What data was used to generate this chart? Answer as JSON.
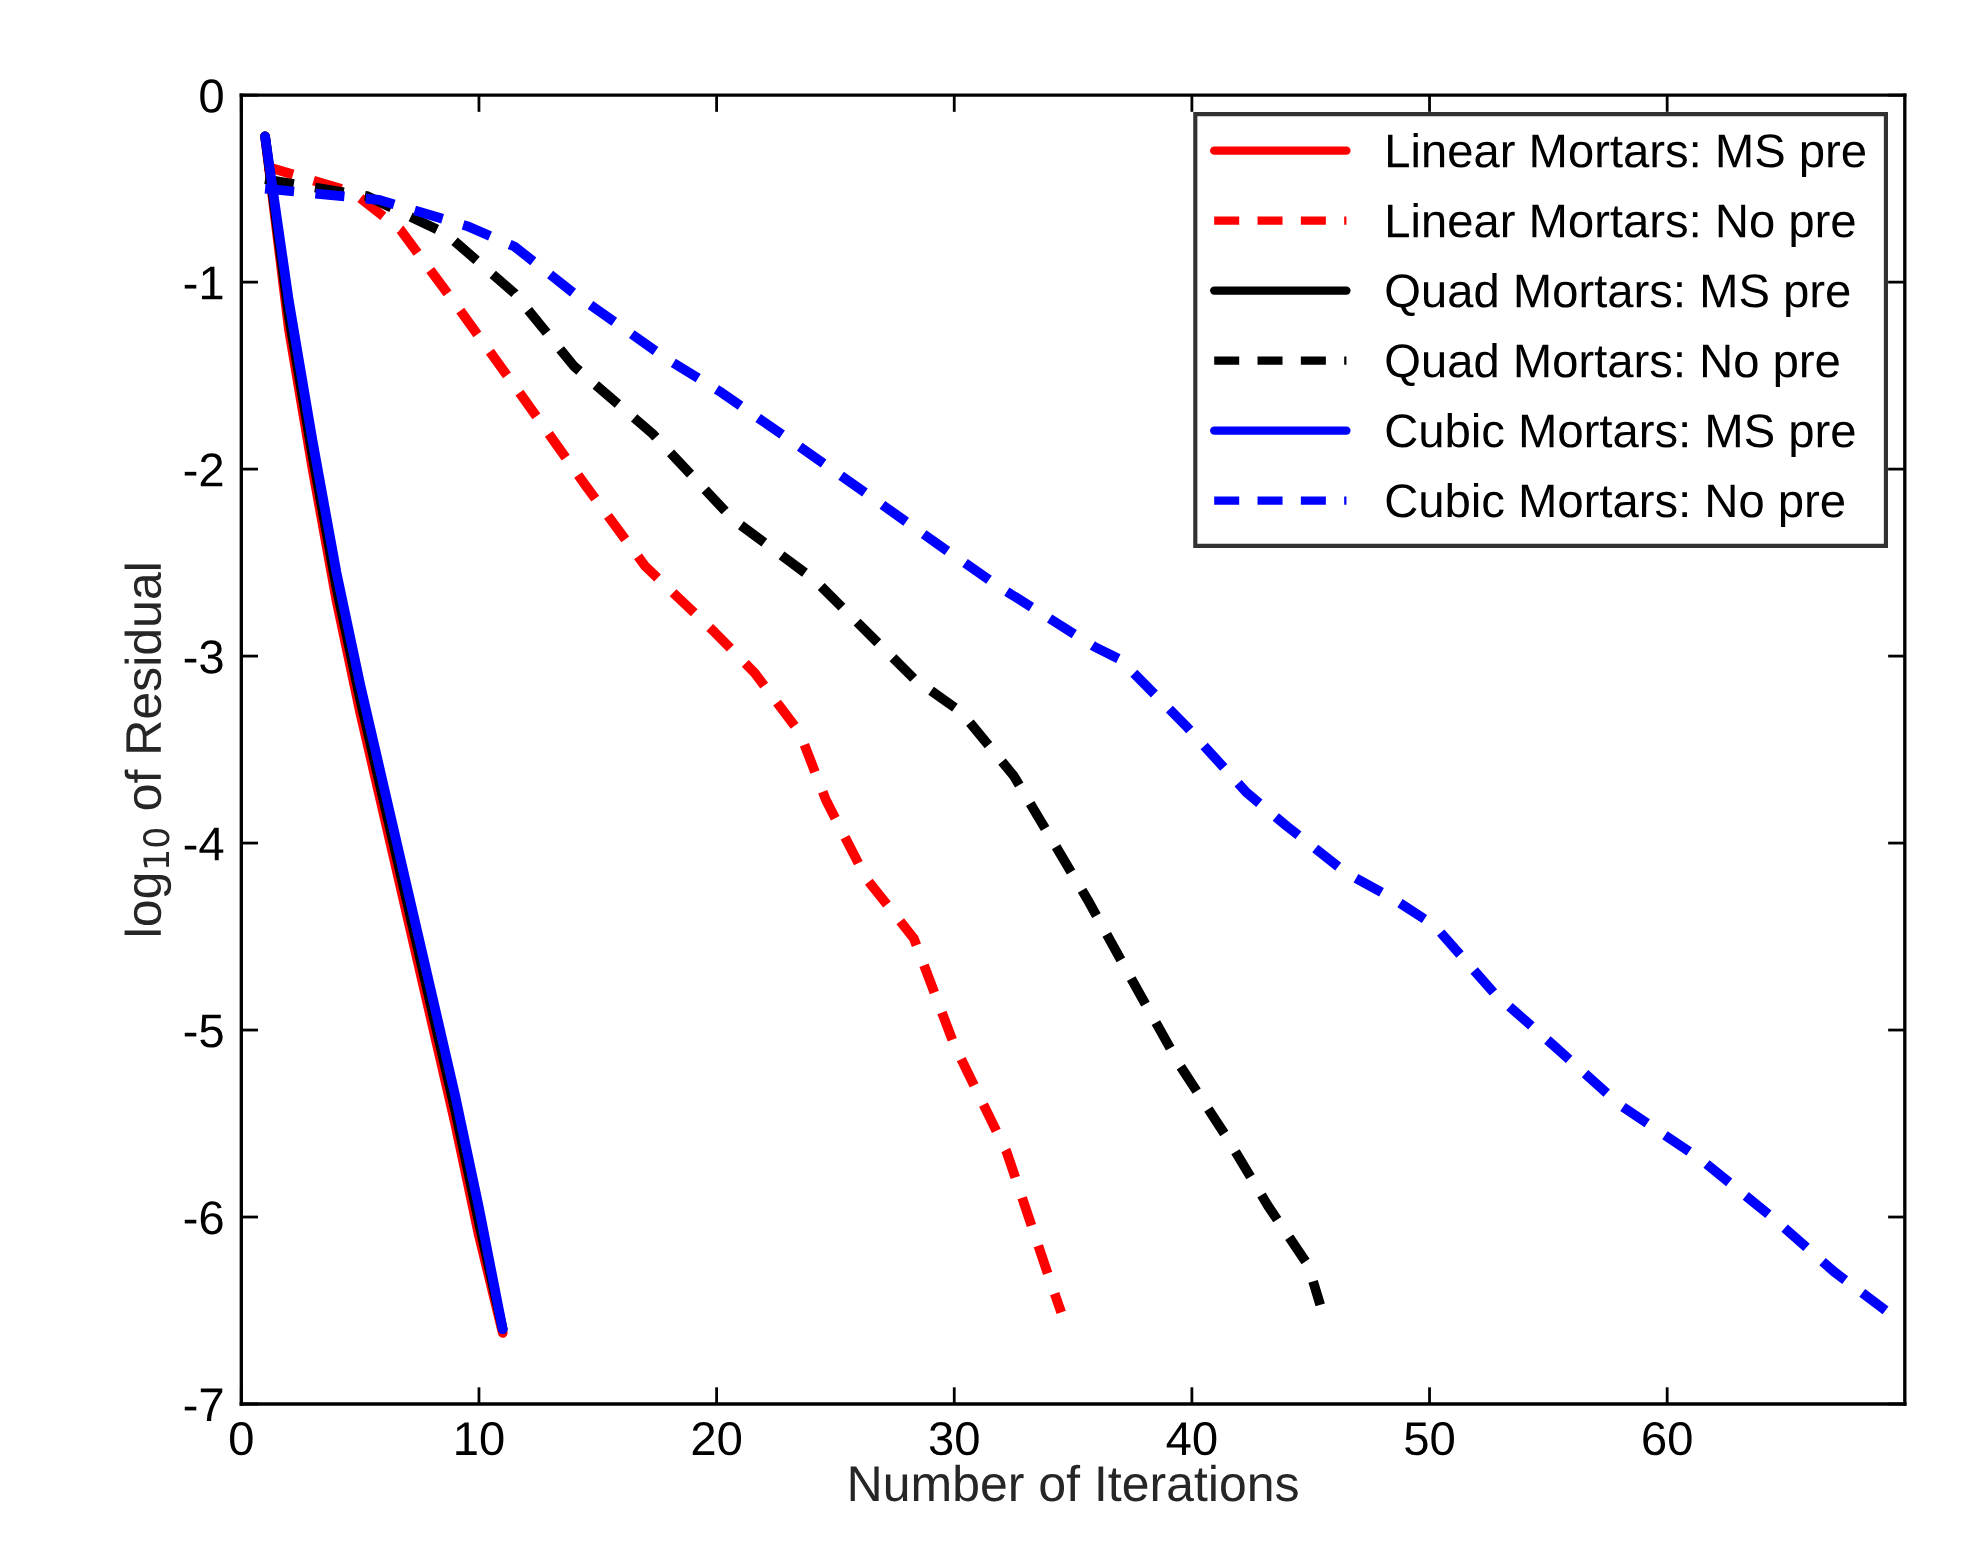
{
  "chart_data": {
    "type": "line",
    "xlabel": "Number of Iterations",
    "ylabel": "log$_{10}$ of Residual",
    "xlim": [
      0,
      70
    ],
    "xticks": [
      0,
      10,
      20,
      30,
      40,
      50,
      60
    ],
    "ylim": [
      -7,
      0
    ],
    "yticks": [
      -7,
      -6,
      -5,
      -4,
      -3,
      -2,
      -1,
      0
    ],
    "grid": false,
    "legend": "top right",
    "series": [
      {
        "name": "Linear Mortars: MS pre",
        "color": "#ff0000",
        "line_style": "solid",
        "x": [
          1,
          2,
          3,
          4,
          5,
          6,
          7,
          8,
          9,
          10,
          11
        ],
        "values": [
          -0.22,
          -1.25,
          -2.0,
          -2.7,
          -3.3,
          -3.85,
          -4.4,
          -4.95,
          -5.5,
          -6.1,
          -6.62
        ]
      },
      {
        "name": "Linear Mortars: No pre",
        "color": "#ff0000",
        "line_style": "dashed",
        "x": [
          1,
          4.7,
          6.7,
          9.2,
          11.7,
          14.5,
          17.0,
          19.9,
          21.6,
          23.5,
          24.6,
          26.3,
          28.3,
          30.0,
          32.2,
          33.9,
          34.5
        ],
        "values": [
          -0.38,
          -0.52,
          -0.72,
          -1.15,
          -1.59,
          -2.09,
          -2.52,
          -2.87,
          -3.09,
          -3.41,
          -3.77,
          -4.19,
          -4.51,
          -5.08,
          -5.65,
          -6.29,
          -6.51
        ]
      },
      {
        "name": "Quad Mortars: MS pre",
        "color": "#000000",
        "line_style": "solid",
        "x": [
          1,
          2,
          3,
          4,
          5,
          6,
          7,
          8,
          9,
          10,
          11
        ],
        "values": [
          -0.22,
          -1.18,
          -1.93,
          -2.63,
          -3.23,
          -3.78,
          -4.33,
          -4.88,
          -5.43,
          -6.03,
          -6.6
        ]
      },
      {
        "name": "Quad Mortars: No pre",
        "color": "#000000",
        "line_style": "dashed",
        "x": [
          1,
          5.3,
          8.6,
          11.5,
          14.0,
          17.3,
          20.7,
          24.1,
          28.3,
          30.3,
          32.5,
          35.6,
          37.6,
          39.5,
          41.5,
          43.2,
          44.9,
          45.4
        ],
        "values": [
          -0.45,
          -0.54,
          -0.74,
          -1.06,
          -1.45,
          -1.81,
          -2.27,
          -2.59,
          -3.12,
          -3.3,
          -3.64,
          -4.3,
          -4.76,
          -5.19,
          -5.58,
          -5.94,
          -6.26,
          -6.47
        ]
      },
      {
        "name": "Cubic Mortars: MS pre",
        "color": "#0000ff",
        "line_style": "solid",
        "x": [
          1,
          2,
          3,
          4,
          5,
          6,
          7,
          8,
          9,
          10,
          11
        ],
        "values": [
          -0.22,
          -1.1,
          -1.85,
          -2.55,
          -3.15,
          -3.7,
          -4.25,
          -4.8,
          -5.35,
          -5.95,
          -6.6
        ]
      },
      {
        "name": "Cubic Mortars: No pre",
        "color": "#0000ff",
        "line_style": "dashed",
        "x": [
          1,
          5.8,
          9.5,
          11.5,
          14.0,
          17.9,
          20.2,
          23.5,
          26.3,
          29.4,
          31.9,
          35.9,
          37.0,
          39.8,
          42.3,
          44.0,
          46.5,
          48.5,
          50.2,
          52.7,
          55.2,
          58.0,
          61.4,
          64.5,
          67.0,
          69.3
        ],
        "values": [
          -0.5,
          -0.56,
          -0.7,
          -0.81,
          -1.06,
          -1.41,
          -1.59,
          -1.88,
          -2.13,
          -2.41,
          -2.63,
          -2.95,
          -3.02,
          -3.38,
          -3.73,
          -3.91,
          -4.16,
          -4.3,
          -4.44,
          -4.8,
          -5.08,
          -5.4,
          -5.69,
          -6.01,
          -6.29,
          -6.51
        ]
      }
    ]
  }
}
